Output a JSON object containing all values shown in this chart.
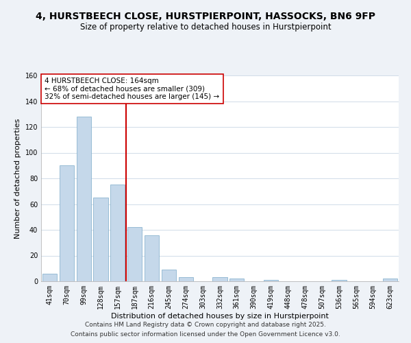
{
  "title": "4, HURSTBEECH CLOSE, HURSTPIERPOINT, HASSOCKS, BN6 9FP",
  "subtitle": "Size of property relative to detached houses in Hurstpierpoint",
  "xlabel": "Distribution of detached houses by size in Hurstpierpoint",
  "ylabel": "Number of detached properties",
  "categories": [
    "41sqm",
    "70sqm",
    "99sqm",
    "128sqm",
    "157sqm",
    "187sqm",
    "216sqm",
    "245sqm",
    "274sqm",
    "303sqm",
    "332sqm",
    "361sqm",
    "390sqm",
    "419sqm",
    "448sqm",
    "478sqm",
    "507sqm",
    "536sqm",
    "565sqm",
    "594sqm",
    "623sqm"
  ],
  "values": [
    6,
    90,
    128,
    65,
    75,
    42,
    36,
    9,
    3,
    0,
    3,
    2,
    0,
    1,
    0,
    0,
    0,
    1,
    0,
    0,
    2
  ],
  "bar_color": "#c5d8ea",
  "bar_edge_color": "#7aaac8",
  "highlight_color": "#cc0000",
  "annotation_line1": "4 HURSTBEECH CLOSE: 164sqm",
  "annotation_line2": "← 68% of detached houses are smaller (309)",
  "annotation_line3": "32% of semi-detached houses are larger (145) →",
  "vline_x": 4.5,
  "ylim": [
    0,
    160
  ],
  "yticks": [
    0,
    20,
    40,
    60,
    80,
    100,
    120,
    140,
    160
  ],
  "footnote1": "Contains HM Land Registry data © Crown copyright and database right 2025.",
  "footnote2": "Contains public sector information licensed under the Open Government Licence v3.0.",
  "background_color": "#eef2f7",
  "plot_bg_color": "#ffffff",
  "grid_color": "#d0dbe8",
  "title_fontsize": 10,
  "subtitle_fontsize": 8.5,
  "axis_label_fontsize": 8,
  "tick_fontsize": 7,
  "annotation_fontsize": 7.5,
  "footnote_fontsize": 6.5
}
